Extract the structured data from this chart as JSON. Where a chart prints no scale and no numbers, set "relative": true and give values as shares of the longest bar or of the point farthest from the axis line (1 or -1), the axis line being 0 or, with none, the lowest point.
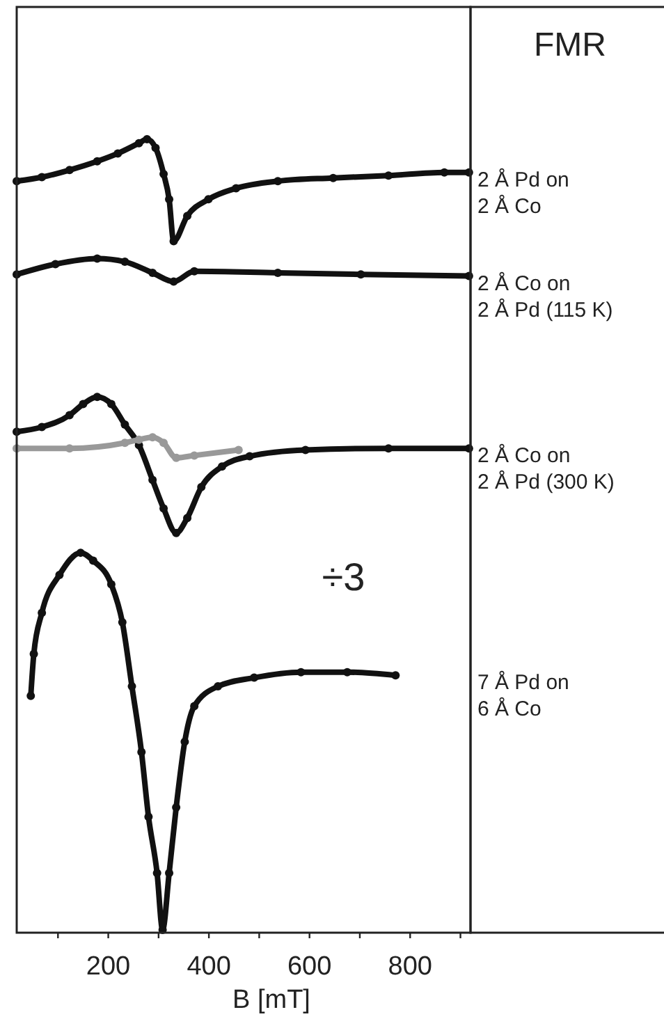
{
  "chart_data": {
    "type": "line",
    "title": "FMR",
    "xlabel": "B [mT]",
    "relative": true,
    "marker": "circle",
    "line_style": "solid",
    "xlim": [
      18,
      920
    ],
    "xticks": [
      {
        "value": 100,
        "label": null
      },
      200,
      {
        "value": 300,
        "label": null
      },
      400,
      {
        "value": 500,
        "label": null
      },
      600,
      {
        "value": 700,
        "label": null
      },
      800,
      {
        "value": 900,
        "label": null
      }
    ],
    "annotations": [
      "÷3"
    ],
    "series": [
      {
        "name": "2 Å Pd on\n2 Å Co",
        "color": "#111111",
        "x": [
          18,
          68,
          123,
          178,
          219,
          261,
          277,
          294,
          310,
          321,
          330,
          357,
          399,
          454,
          537,
          647,
          757,
          868,
          917
        ],
        "values": [
          0.947,
          0.952,
          0.961,
          0.972,
          0.982,
          0.995,
          1,
          0.989,
          0.956,
          0.924,
          0.871,
          0.903,
          0.924,
          0.938,
          0.947,
          0.951,
          0.954,
          0.958,
          0.958
        ]
      },
      {
        "name": "2 Å Co on\n2 Å Pd (115 K)",
        "color": "#111111",
        "x": [
          18,
          95,
          178,
          233,
          288,
          330,
          371,
          537,
          702,
          917
        ],
        "values": [
          0.829,
          0.842,
          0.849,
          0.845,
          0.831,
          0.82,
          0.833,
          0.831,
          0.829,
          0.827
        ]
      },
      {
        "name": "2 Å Co on\n2 Å Pd (300 K)",
        "color": "#111111",
        "x": [
          18,
          68,
          123,
          150,
          178,
          206,
          233,
          261,
          288,
          310,
          335,
          357,
          385,
          426,
          481,
          592,
          757,
          917
        ],
        "values": [
          0.63,
          0.636,
          0.651,
          0.665,
          0.674,
          0.665,
          0.639,
          0.613,
          0.569,
          0.533,
          0.502,
          0.521,
          0.56,
          0.586,
          0.599,
          0.607,
          0.609,
          0.609
        ]
      },
      {
        "color": "#999999",
        "x": [
          18,
          123,
          233,
          261,
          288,
          310,
          335,
          371,
          459
        ],
        "values": [
          0.609,
          0.609,
          0.616,
          0.62,
          0.623,
          0.616,
          0.597,
          0.6,
          0.607
        ]
      },
      {
        "name": "7 Å Pd on\n6 Å Co",
        "color": "#111111",
        "x": [
          46,
          52,
          68,
          103,
          145,
          170,
          206,
          228,
          247,
          266,
          280,
          297,
          308,
          321,
          335,
          352,
          371,
          418,
          490,
          583,
          675,
          771
        ],
        "values": [
          0.296,
          0.349,
          0.401,
          0.449,
          0.477,
          0.467,
          0.437,
          0.389,
          0.308,
          0.225,
          0.143,
          0.072,
          0,
          0.072,
          0.155,
          0.238,
          0.283,
          0.308,
          0.319,
          0.326,
          0.326,
          0.322
        ]
      }
    ]
  }
}
